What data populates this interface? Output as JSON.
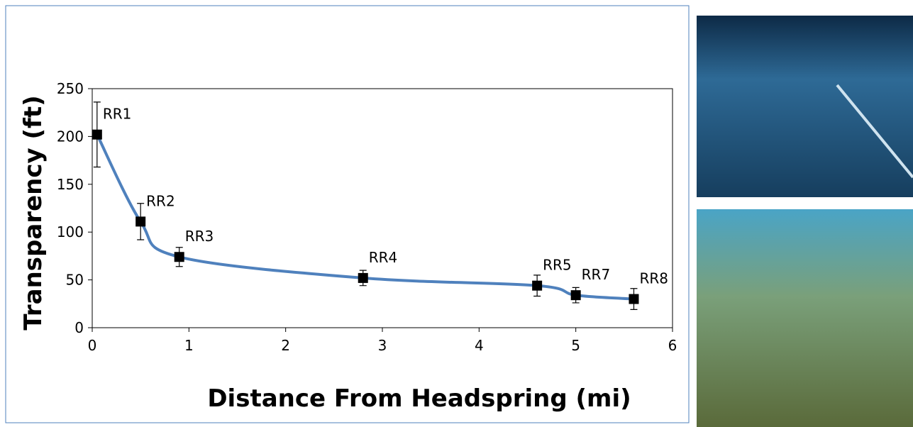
{
  "chart_data": {
    "type": "line",
    "xlabel": "Distance From Headspring (mi)",
    "ylabel": "Transparency (ft)",
    "x": [
      0.05,
      0.5,
      0.9,
      2.8,
      4.6,
      5.0,
      5.6
    ],
    "point_labels": [
      "RR1",
      "RR2",
      "RR3",
      "RR4",
      "RR5",
      "RR7",
      "RR8"
    ],
    "series": [
      {
        "color": "#4f81bd",
        "marker_color": "#000000",
        "values": [
          202,
          111,
          74,
          52,
          44,
          34,
          30
        ],
        "errors": [
          34,
          19,
          10,
          8,
          11,
          8,
          11
        ]
      }
    ],
    "xlim": [
      0,
      6
    ],
    "xticks": [
      0,
      1,
      2,
      3,
      4,
      5,
      6
    ],
    "ylim": [
      0,
      250
    ],
    "yticks": [
      0,
      50,
      100,
      150,
      200,
      250
    ]
  }
}
